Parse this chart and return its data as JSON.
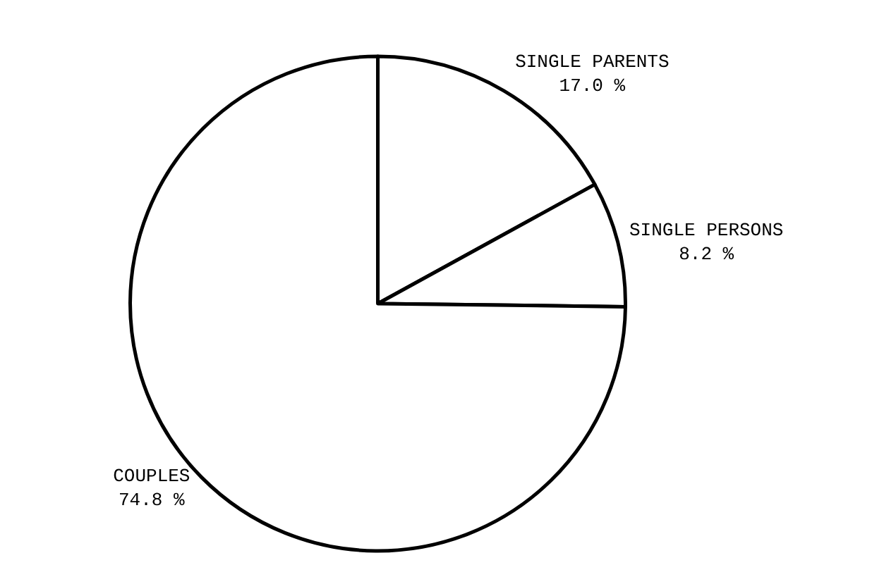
{
  "chart_data": {
    "type": "pie",
    "categories": [
      "SINGLE PARENTS",
      "SINGLE PERSONS",
      "COUPLES"
    ],
    "values": [
      17.0,
      8.2,
      74.8
    ],
    "value_labels": [
      "17.0 %",
      "8.2 %",
      "74.8 %"
    ],
    "colors": [
      "#ffffff",
      "#ffffff",
      "#ffffff"
    ],
    "legend": false
  }
}
